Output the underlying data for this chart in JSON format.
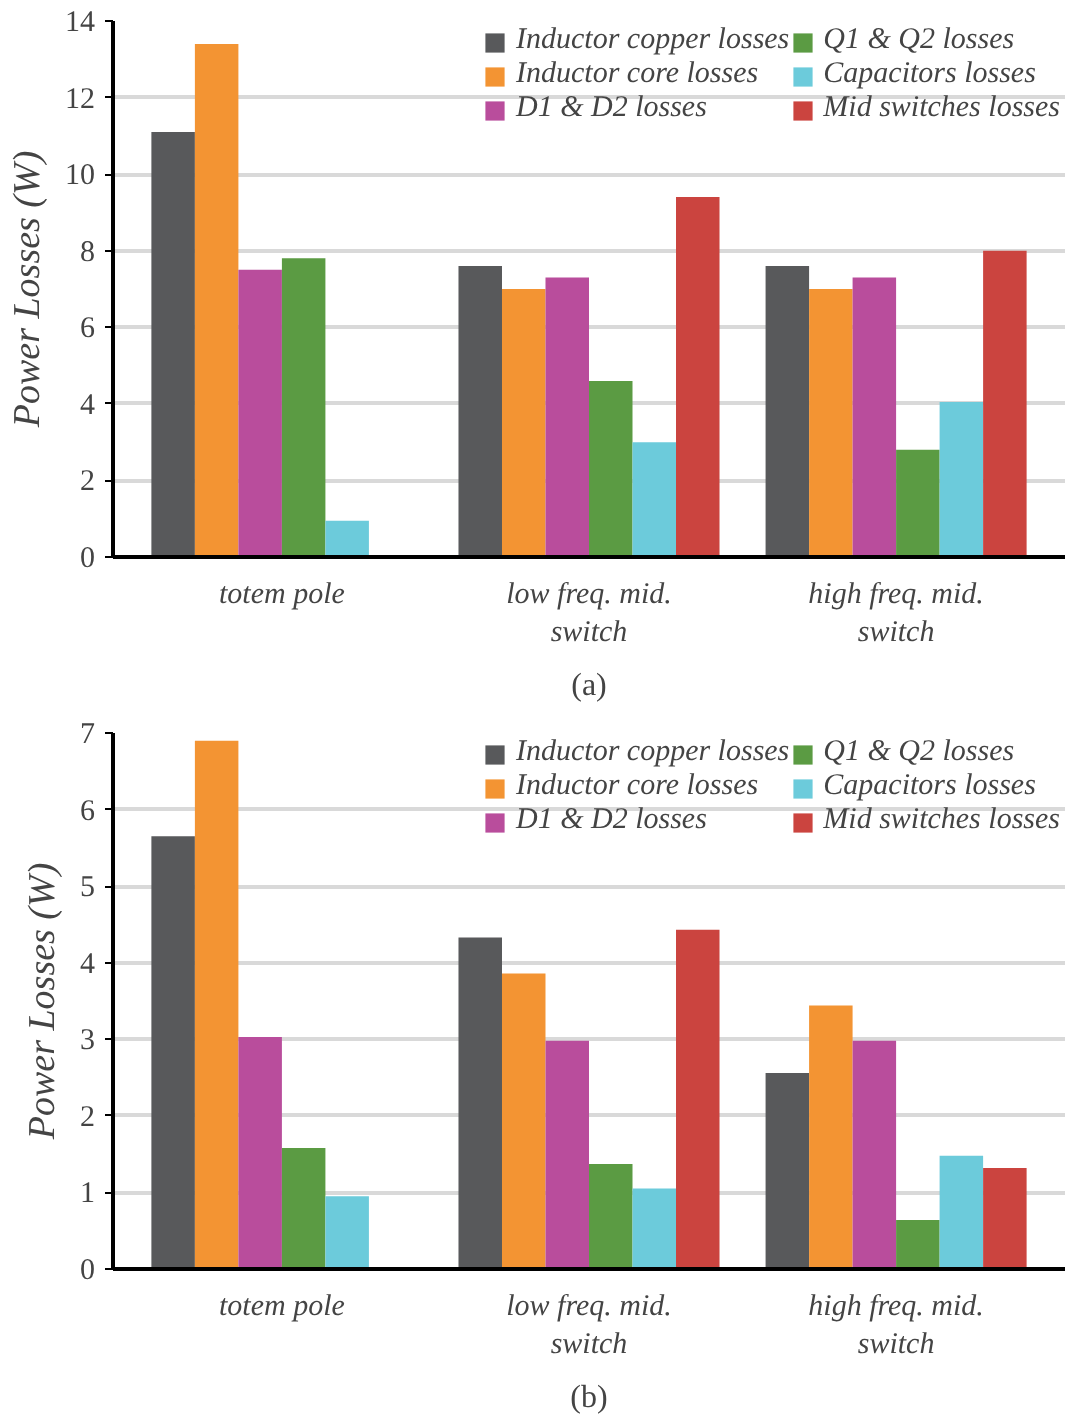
{
  "chart_data": [
    {
      "type": "bar",
      "ylabel": "Power Losses (W)",
      "categories": [
        "totem pole",
        "low freq. mid. switch",
        "high freq. mid. switch"
      ],
      "ylim": [
        0,
        14
      ],
      "yticks": [
        0,
        2,
        4,
        6,
        8,
        10,
        12,
        14
      ],
      "grid": "y",
      "legend": "top right",
      "annotations": [
        "(a)"
      ],
      "series": [
        {
          "name": "Inductor copper losses",
          "color": "#58595b",
          "values": [
            11.1,
            7.6,
            7.6
          ]
        },
        {
          "name": "Inductor core losses",
          "color": "#f39433",
          "values": [
            13.4,
            7.0,
            7.0
          ]
        },
        {
          "name": "D1 & D2 losses",
          "color": "#b94d9c",
          "values": [
            7.5,
            7.3,
            7.3
          ]
        },
        {
          "name": "Q1 & Q2 losses",
          "color": "#5b9b43",
          "values": [
            7.8,
            4.6,
            2.8
          ]
        },
        {
          "name": "Capacitors losses",
          "color": "#6ccbdb",
          "values": [
            0.95,
            3.0,
            4.05
          ]
        },
        {
          "name": "Mid switches losses",
          "color": "#cb443f",
          "values": [
            null,
            9.4,
            8.0
          ]
        }
      ]
    },
    {
      "type": "bar",
      "ylabel": "Power Losses (W)",
      "categories": [
        "totem pole",
        "low freq. mid. switch",
        "high freq. mid. switch"
      ],
      "ylim": [
        0,
        7
      ],
      "yticks": [
        0,
        1,
        2,
        3,
        4,
        5,
        6,
        7
      ],
      "grid": "y",
      "legend": "top right",
      "annotations": [
        "(b)"
      ],
      "series": [
        {
          "name": "Inductor copper losses",
          "color": "#58595b",
          "values": [
            5.65,
            4.33,
            2.56
          ]
        },
        {
          "name": "Inductor core losses",
          "color": "#f39433",
          "values": [
            6.9,
            3.86,
            3.44
          ]
        },
        {
          "name": "D1 & D2 losses",
          "color": "#b94d9c",
          "values": [
            3.03,
            2.98,
            2.98
          ]
        },
        {
          "name": "Q1 & Q2 losses",
          "color": "#5b9b43",
          "values": [
            1.58,
            1.37,
            0.64
          ]
        },
        {
          "name": "Capacitors losses",
          "color": "#6ccbdb",
          "values": [
            0.95,
            1.05,
            1.48
          ]
        },
        {
          "name": "Mid switches losses",
          "color": "#cb443f",
          "values": [
            null,
            4.43,
            1.32
          ]
        }
      ]
    }
  ]
}
